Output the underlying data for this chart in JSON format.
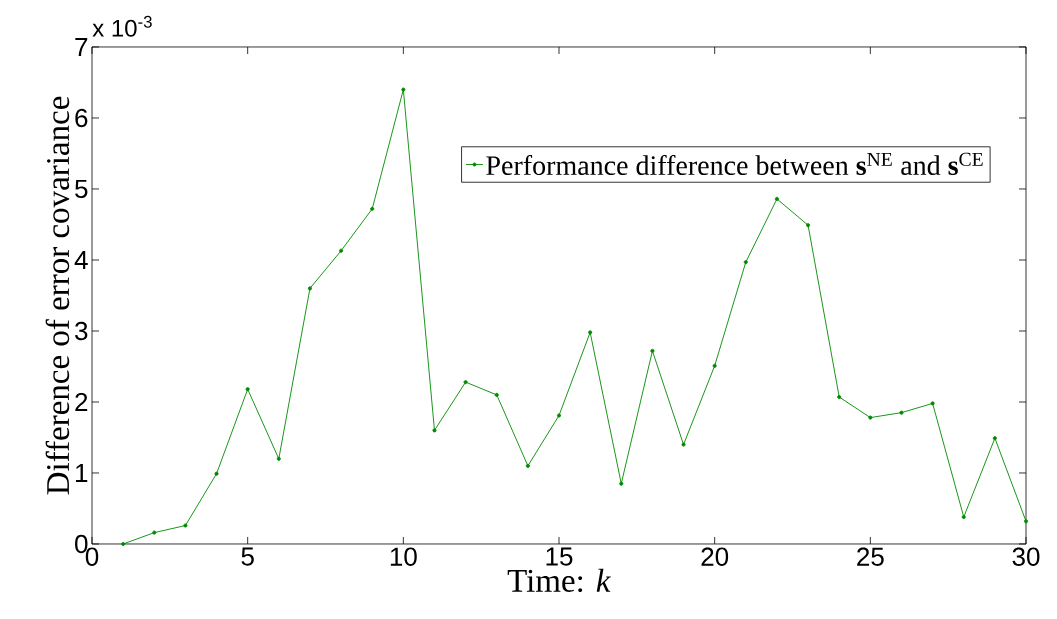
{
  "chart_data": {
    "type": "line",
    "xlabel": "Time: *k*",
    "ylabel": "Difference of error covariance",
    "annotations": [
      "x 10$^{-3}$"
    ],
    "x": [
      1,
      2,
      3,
      4,
      5,
      6,
      7,
      8,
      9,
      10,
      11,
      12,
      13,
      14,
      15,
      16,
      17,
      18,
      19,
      20,
      21,
      22,
      23,
      24,
      25,
      26,
      27,
      28,
      29,
      30
    ],
    "series": [
      {
        "name": "Performance difference between **s**$^{NE}$ and **s**$^{CE}$",
        "color": "#008a00",
        "values": [
          0,
          0.16,
          0.26,
          0.99,
          2.18,
          1.2,
          3.6,
          4.13,
          4.72,
          6.4,
          1.6,
          2.28,
          2.1,
          1.1,
          1.81,
          2.98,
          0.85,
          2.72,
          1.4,
          2.51,
          3.97,
          4.86,
          4.49,
          2.07,
          1.78,
          1.85,
          1.98,
          0.38,
          1.49,
          0.32
        ]
      }
    ],
    "xlim": [
      0,
      30
    ],
    "ylim": [
      0,
      7
    ],
    "xticks": [
      0,
      5,
      10,
      15,
      20,
      25,
      30
    ],
    "yticks": [
      0,
      1,
      2,
      3,
      4,
      5,
      6,
      7
    ],
    "marker": "circle",
    "line_style": "solid",
    "legend": "top right",
    "grid": false
  }
}
